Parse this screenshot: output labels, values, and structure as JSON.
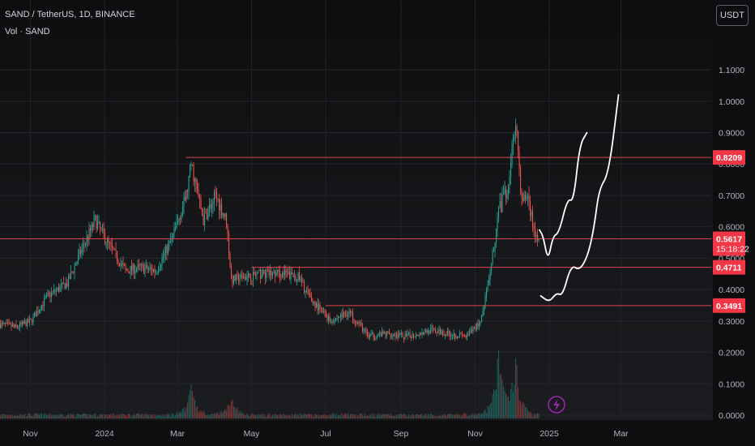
{
  "header": {
    "title": "SAND / TetherUS, 1D, BINANCE",
    "volume_label": "Vol · SAND"
  },
  "currency_button": "USDT",
  "colors": {
    "up": "#26a69a",
    "down": "#ef5350",
    "level_line": "#e0454d",
    "drawing": "#ffffff",
    "label_bg": "#f23645"
  },
  "icons": [
    "lightning-icon"
  ],
  "chart_data": {
    "type": "candlestick",
    "symbol": "SAND / TetherUS",
    "interval": "1D",
    "exchange": "BINANCE",
    "y_axis": {
      "range": [
        0.0,
        1.1
      ],
      "ticks": [
        "0.0000",
        "0.1000",
        "0.2000",
        "0.3000",
        "0.4000",
        "0.5000",
        "0.6000",
        "0.7000",
        "0.8000",
        "0.9000",
        "1.0000",
        "1.1000"
      ],
      "tick_values": [
        0,
        0.1,
        0.2,
        0.3,
        0.4,
        0.5,
        0.6,
        0.7,
        0.8,
        0.9,
        1.0,
        1.1
      ]
    },
    "x_axis": {
      "ticks": [
        {
          "label": "Nov",
          "date": "2023-11-01"
        },
        {
          "label": "2024",
          "date": "2024-01-01"
        },
        {
          "label": "Mar",
          "date": "2024-03-01"
        },
        {
          "label": "May",
          "date": "2024-05-01"
        },
        {
          "label": "Jul",
          "date": "2024-07-01"
        },
        {
          "label": "Sep",
          "date": "2024-09-01"
        },
        {
          "label": "Nov",
          "date": "2024-11-01"
        },
        {
          "label": "2025",
          "date": "2025-01-01"
        },
        {
          "label": "Mar",
          "date": "2025-03-01"
        }
      ],
      "range": [
        "2023-10-07",
        "2025-04-10"
      ]
    },
    "grid": true,
    "price_path": [
      {
        "date": "2023-10-07",
        "price": 0.29
      },
      {
        "date": "2023-10-20",
        "price": 0.28
      },
      {
        "date": "2023-11-01",
        "price": 0.3
      },
      {
        "date": "2023-11-15",
        "price": 0.38
      },
      {
        "date": "2023-12-01",
        "price": 0.42
      },
      {
        "date": "2023-12-12",
        "price": 0.52
      },
      {
        "date": "2023-12-24",
        "price": 0.62
      },
      {
        "date": "2024-01-03",
        "price": 0.55
      },
      {
        "date": "2024-01-18",
        "price": 0.46
      },
      {
        "date": "2024-01-30",
        "price": 0.47
      },
      {
        "date": "2024-02-12",
        "price": 0.46
      },
      {
        "date": "2024-02-25",
        "price": 0.56
      },
      {
        "date": "2024-03-08",
        "price": 0.7
      },
      {
        "date": "2024-03-12",
        "price": 0.8
      },
      {
        "date": "2024-03-22",
        "price": 0.62
      },
      {
        "date": "2024-04-01",
        "price": 0.7
      },
      {
        "date": "2024-04-10",
        "price": 0.62
      },
      {
        "date": "2024-04-14",
        "price": 0.43
      },
      {
        "date": "2024-04-25",
        "price": 0.44
      },
      {
        "date": "2024-05-10",
        "price": 0.45
      },
      {
        "date": "2024-05-25",
        "price": 0.45
      },
      {
        "date": "2024-06-08",
        "price": 0.44
      },
      {
        "date": "2024-06-18",
        "price": 0.37
      },
      {
        "date": "2024-07-05",
        "price": 0.3
      },
      {
        "date": "2024-07-20",
        "price": 0.33
      },
      {
        "date": "2024-08-05",
        "price": 0.25
      },
      {
        "date": "2024-08-20",
        "price": 0.26
      },
      {
        "date": "2024-09-05",
        "price": 0.25
      },
      {
        "date": "2024-09-25",
        "price": 0.27
      },
      {
        "date": "2024-10-10",
        "price": 0.26
      },
      {
        "date": "2024-10-25",
        "price": 0.25
      },
      {
        "date": "2024-11-05",
        "price": 0.3
      },
      {
        "date": "2024-11-12",
        "price": 0.42
      },
      {
        "date": "2024-11-20",
        "price": 0.65
      },
      {
        "date": "2024-11-28",
        "price": 0.73
      },
      {
        "date": "2024-12-04",
        "price": 0.95
      },
      {
        "date": "2024-12-09",
        "price": 0.68
      },
      {
        "date": "2024-12-14",
        "price": 0.7
      },
      {
        "date": "2024-12-20",
        "price": 0.57
      },
      {
        "date": "2024-12-23",
        "price": 0.5617
      }
    ],
    "current_price": {
      "value": "0.5617",
      "countdown": "15:18:22"
    },
    "horizontal_levels": [
      {
        "value": 0.8209,
        "label": "0.8209",
        "from": "2024-03-08"
      },
      {
        "value": 0.5617,
        "label": "0.5617",
        "from": "2023-10-07"
      },
      {
        "value": 0.4711,
        "label": "0.4711",
        "from": "2024-05-01"
      },
      {
        "value": 0.3491,
        "label": "0.3491",
        "from": "2024-07-01"
      }
    ],
    "drawn_projections": [
      [
        {
          "date": "2024-12-24",
          "price": 0.59
        },
        {
          "date": "2024-12-27",
          "price": 0.57
        },
        {
          "date": "2024-12-31",
          "price": 0.49
        },
        {
          "date": "2025-01-04",
          "price": 0.57
        },
        {
          "date": "2025-01-09",
          "price": 0.58
        },
        {
          "date": "2025-01-16",
          "price": 0.69
        },
        {
          "date": "2025-01-21",
          "price": 0.68
        },
        {
          "date": "2025-01-26",
          "price": 0.86
        },
        {
          "date": "2025-02-01",
          "price": 0.9
        }
      ],
      [
        {
          "date": "2024-12-25",
          "price": 0.38
        },
        {
          "date": "2025-01-01",
          "price": 0.36
        },
        {
          "date": "2025-01-07",
          "price": 0.39
        },
        {
          "date": "2025-01-12",
          "price": 0.38
        },
        {
          "date": "2025-01-19",
          "price": 0.48
        },
        {
          "date": "2025-01-26",
          "price": 0.46
        },
        {
          "date": "2025-02-02",
          "price": 0.51
        },
        {
          "date": "2025-02-07",
          "price": 0.6
        },
        {
          "date": "2025-02-11",
          "price": 0.72
        },
        {
          "date": "2025-02-19",
          "price": 0.77
        },
        {
          "date": "2025-02-27",
          "price": 1.02
        }
      ]
    ],
    "volume_series": {
      "name": "Vol · SAND",
      "relative_peaks": [
        {
          "date": "2024-03-12",
          "level": 0.35
        },
        {
          "date": "2024-04-14",
          "level": 0.25
        },
        {
          "date": "2024-11-20",
          "level": 0.75
        },
        {
          "date": "2024-12-04",
          "level": 0.65
        }
      ]
    }
  }
}
